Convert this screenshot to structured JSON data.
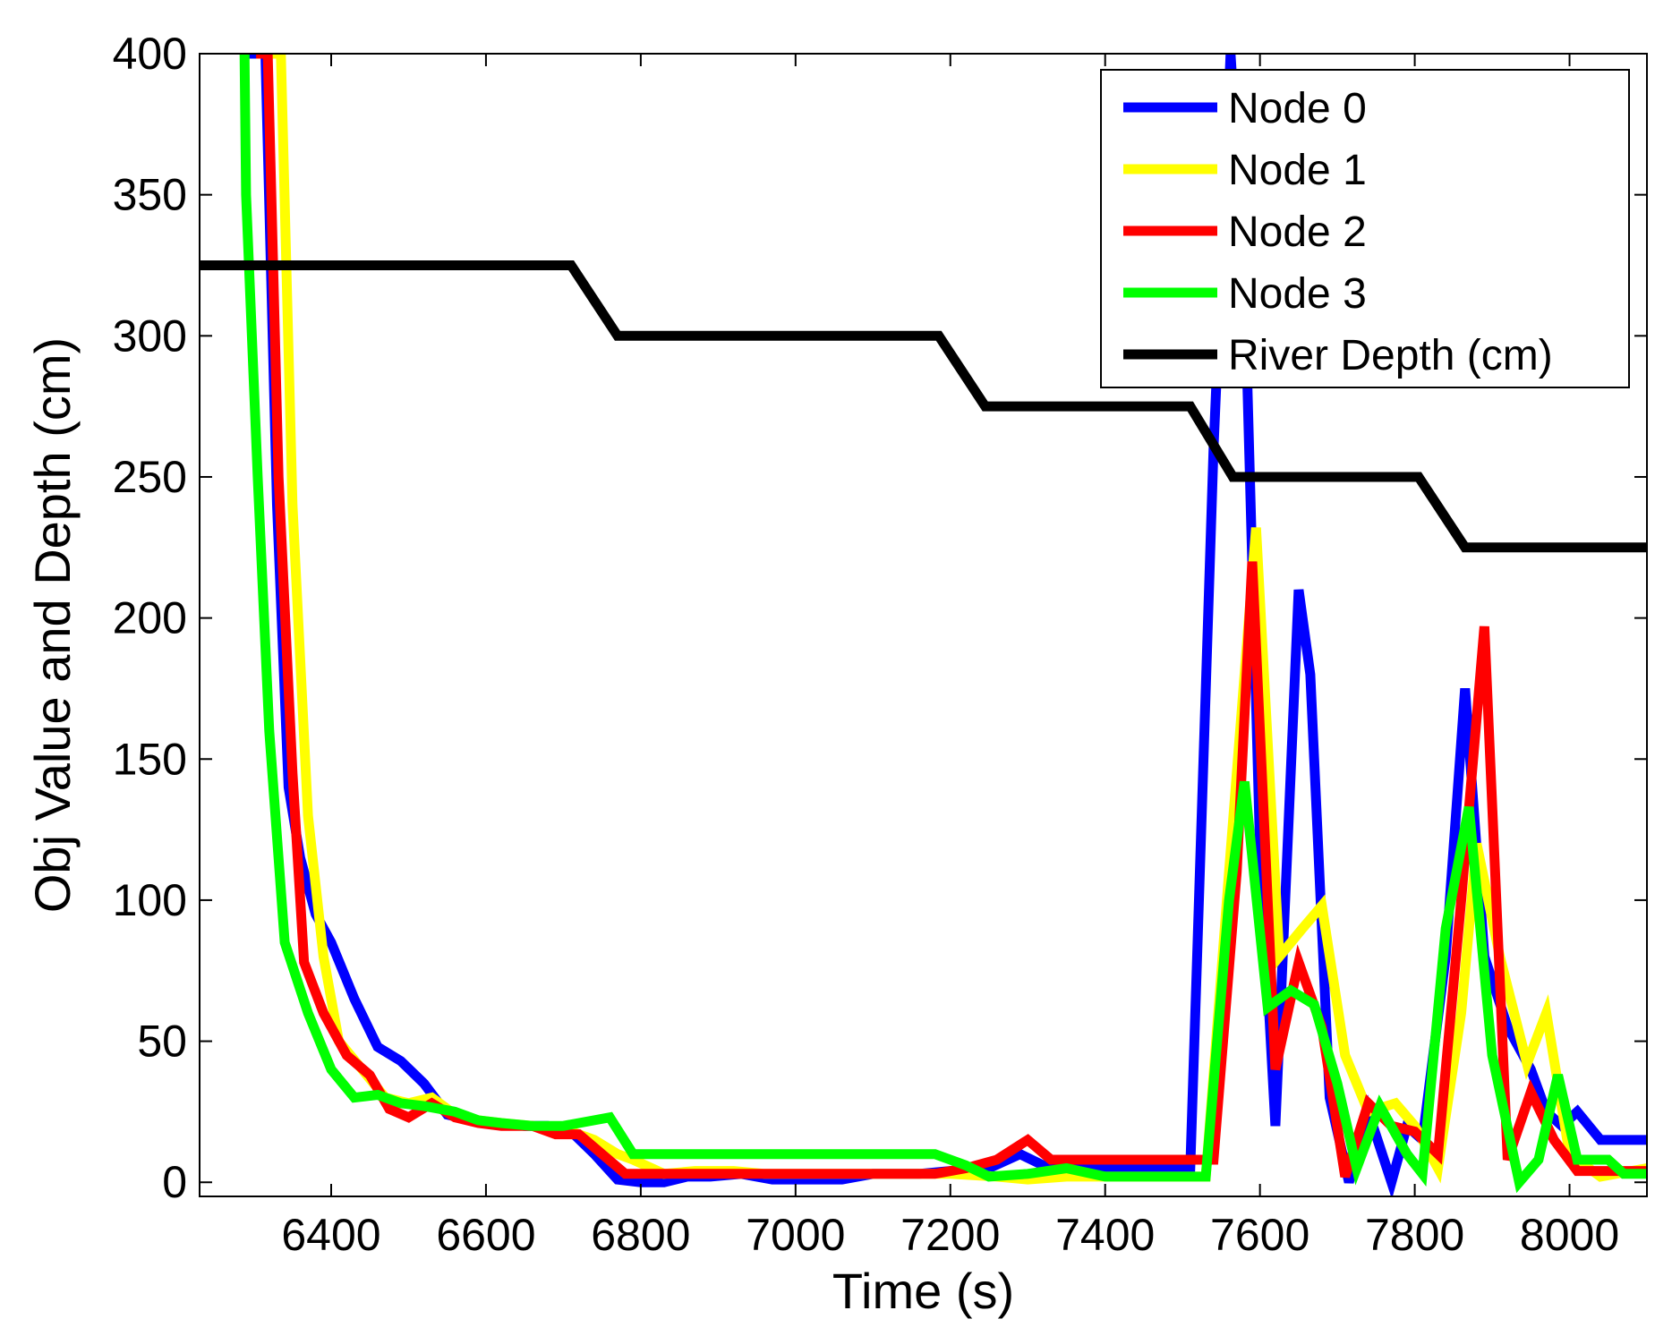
{
  "chart_data": {
    "type": "line",
    "title": "",
    "xlabel": "Time (s)",
    "ylabel": "Obj Value and Depth (cm)",
    "xlim": [
      6230,
      8100
    ],
    "ylim": [
      -5,
      400
    ],
    "xticks": [
      6400,
      6600,
      6800,
      7000,
      7200,
      7400,
      7600,
      7800,
      8000
    ],
    "yticks": [
      0,
      50,
      100,
      150,
      200,
      250,
      300,
      350,
      400
    ],
    "grid": false,
    "legend_position": "top-right",
    "series": [
      {
        "name": "Node 0",
        "color": "#0000ff",
        "points": [
          [
            6286,
            400
          ],
          [
            6300,
            400
          ],
          [
            6315,
            400
          ],
          [
            6330,
            240
          ],
          [
            6345,
            140
          ],
          [
            6360,
            115
          ],
          [
            6380,
            95
          ],
          [
            6400,
            85
          ],
          [
            6430,
            65
          ],
          [
            6460,
            48
          ],
          [
            6490,
            43
          ],
          [
            6520,
            35
          ],
          [
            6550,
            24
          ],
          [
            6580,
            22
          ],
          [
            6610,
            21
          ],
          [
            6650,
            20
          ],
          [
            6680,
            20
          ],
          [
            6710,
            18
          ],
          [
            6740,
            10
          ],
          [
            6770,
            1
          ],
          [
            6800,
            0
          ],
          [
            6830,
            0
          ],
          [
            6860,
            2
          ],
          [
            6890,
            2
          ],
          [
            6930,
            3
          ],
          [
            6970,
            1
          ],
          [
            7000,
            1
          ],
          [
            7060,
            1
          ],
          [
            7100,
            3
          ],
          [
            7160,
            3
          ],
          [
            7200,
            4
          ],
          [
            7250,
            5
          ],
          [
            7290,
            10
          ],
          [
            7320,
            6
          ],
          [
            7350,
            5
          ],
          [
            7400,
            5
          ],
          [
            7450,
            5
          ],
          [
            7500,
            5
          ],
          [
            7510,
            5
          ],
          [
            7540,
            260
          ],
          [
            7562,
            400
          ],
          [
            7580,
            320
          ],
          [
            7600,
            120
          ],
          [
            7620,
            20
          ],
          [
            7650,
            210
          ],
          [
            7665,
            180
          ],
          [
            7690,
            30
          ],
          [
            7715,
            0
          ],
          [
            7740,
            25
          ],
          [
            7770,
            0
          ],
          [
            7790,
            20
          ],
          [
            7810,
            15
          ],
          [
            7840,
            80
          ],
          [
            7865,
            175
          ],
          [
            7890,
            80
          ],
          [
            7920,
            55
          ],
          [
            7950,
            40
          ],
          [
            7970,
            25
          ],
          [
            7990,
            20
          ],
          [
            8010,
            25
          ],
          [
            8040,
            15
          ],
          [
            8100,
            15
          ]
        ]
      },
      {
        "name": "Node 1",
        "color": "#ffff00",
        "points": [
          [
            6320,
            400
          ],
          [
            6335,
            400
          ],
          [
            6350,
            240
          ],
          [
            6370,
            130
          ],
          [
            6390,
            80
          ],
          [
            6410,
            50
          ],
          [
            6440,
            40
          ],
          [
            6470,
            30
          ],
          [
            6500,
            28
          ],
          [
            6530,
            30
          ],
          [
            6560,
            24
          ],
          [
            6590,
            22
          ],
          [
            6620,
            21
          ],
          [
            6660,
            20
          ],
          [
            6700,
            19
          ],
          [
            6740,
            15
          ],
          [
            6770,
            10
          ],
          [
            6790,
            8
          ],
          [
            6830,
            3
          ],
          [
            6870,
            4
          ],
          [
            6920,
            4
          ],
          [
            6960,
            3
          ],
          [
            7000,
            3
          ],
          [
            7100,
            3
          ],
          [
            7200,
            3
          ],
          [
            7260,
            2
          ],
          [
            7300,
            1
          ],
          [
            7350,
            2
          ],
          [
            7400,
            2
          ],
          [
            7450,
            2
          ],
          [
            7500,
            2
          ],
          [
            7530,
            2
          ],
          [
            7560,
            110
          ],
          [
            7595,
            232
          ],
          [
            7625,
            80
          ],
          [
            7655,
            90
          ],
          [
            7680,
            98
          ],
          [
            7710,
            45
          ],
          [
            7740,
            25
          ],
          [
            7775,
            28
          ],
          [
            7800,
            20
          ],
          [
            7830,
            5
          ],
          [
            7860,
            60
          ],
          [
            7880,
            120
          ],
          [
            7910,
            80
          ],
          [
            7945,
            42
          ],
          [
            7970,
            60
          ],
          [
            8000,
            10
          ],
          [
            8040,
            2
          ],
          [
            8100,
            5
          ]
        ]
      },
      {
        "name": "Node 2",
        "color": "#ff0000",
        "points": [
          [
            6303,
            400
          ],
          [
            6318,
            400
          ],
          [
            6332,
            250
          ],
          [
            6350,
            145
          ],
          [
            6365,
            78
          ],
          [
            6390,
            60
          ],
          [
            6420,
            45
          ],
          [
            6450,
            38
          ],
          [
            6475,
            26
          ],
          [
            6500,
            23
          ],
          [
            6530,
            28
          ],
          [
            6560,
            23
          ],
          [
            6590,
            21
          ],
          [
            6620,
            20
          ],
          [
            6660,
            20
          ],
          [
            6690,
            17
          ],
          [
            6720,
            17
          ],
          [
            6750,
            10
          ],
          [
            6780,
            3
          ],
          [
            6820,
            3
          ],
          [
            6900,
            3
          ],
          [
            7000,
            3
          ],
          [
            7100,
            3
          ],
          [
            7180,
            3
          ],
          [
            7220,
            5
          ],
          [
            7260,
            8
          ],
          [
            7300,
            15
          ],
          [
            7330,
            8
          ],
          [
            7380,
            8
          ],
          [
            7450,
            8
          ],
          [
            7500,
            8
          ],
          [
            7540,
            8
          ],
          [
            7570,
            110
          ],
          [
            7590,
            220
          ],
          [
            7620,
            40
          ],
          [
            7650,
            78
          ],
          [
            7680,
            55
          ],
          [
            7710,
            2
          ],
          [
            7740,
            28
          ],
          [
            7770,
            20
          ],
          [
            7800,
            18
          ],
          [
            7830,
            10
          ],
          [
            7860,
            100
          ],
          [
            7890,
            197
          ],
          [
            7920,
            8
          ],
          [
            7950,
            32
          ],
          [
            7980,
            15
          ],
          [
            8010,
            4
          ],
          [
            8060,
            4
          ],
          [
            8100,
            4
          ]
        ]
      },
      {
        "name": "Node 3",
        "color": "#00ff00",
        "points": [
          [
            6288,
            400
          ],
          [
            6290,
            350
          ],
          [
            6305,
            250
          ],
          [
            6320,
            160
          ],
          [
            6340,
            85
          ],
          [
            6370,
            60
          ],
          [
            6400,
            40
          ],
          [
            6430,
            30
          ],
          [
            6460,
            31
          ],
          [
            6490,
            28
          ],
          [
            6520,
            27
          ],
          [
            6560,
            25
          ],
          [
            6590,
            22
          ],
          [
            6620,
            21
          ],
          [
            6660,
            20
          ],
          [
            6700,
            20
          ],
          [
            6740,
            22
          ],
          [
            6760,
            23
          ],
          [
            6790,
            10
          ],
          [
            6830,
            10
          ],
          [
            6900,
            10
          ],
          [
            7000,
            10
          ],
          [
            7100,
            10
          ],
          [
            7180,
            10
          ],
          [
            7220,
            6
          ],
          [
            7250,
            2
          ],
          [
            7300,
            3
          ],
          [
            7350,
            5
          ],
          [
            7400,
            2
          ],
          [
            7450,
            2
          ],
          [
            7500,
            2
          ],
          [
            7530,
            2
          ],
          [
            7560,
            100
          ],
          [
            7580,
            142
          ],
          [
            7610,
            62
          ],
          [
            7640,
            68
          ],
          [
            7670,
            63
          ],
          [
            7700,
            35
          ],
          [
            7725,
            5
          ],
          [
            7755,
            27
          ],
          [
            7790,
            10
          ],
          [
            7810,
            3
          ],
          [
            7840,
            90
          ],
          [
            7870,
            133
          ],
          [
            7900,
            45
          ],
          [
            7935,
            0
          ],
          [
            7960,
            8
          ],
          [
            7985,
            38
          ],
          [
            8010,
            8
          ],
          [
            8050,
            8
          ],
          [
            8070,
            3
          ],
          [
            8100,
            3
          ]
        ]
      },
      {
        "name": "River Depth (cm)",
        "color": "#000000",
        "points": [
          [
            6230,
            325
          ],
          [
            6710,
            325
          ],
          [
            6770,
            300
          ],
          [
            7185,
            300
          ],
          [
            7245,
            275
          ],
          [
            7510,
            275
          ],
          [
            7565,
            250
          ],
          [
            7805,
            250
          ],
          [
            7865,
            225
          ],
          [
            8100,
            225
          ]
        ]
      }
    ]
  }
}
